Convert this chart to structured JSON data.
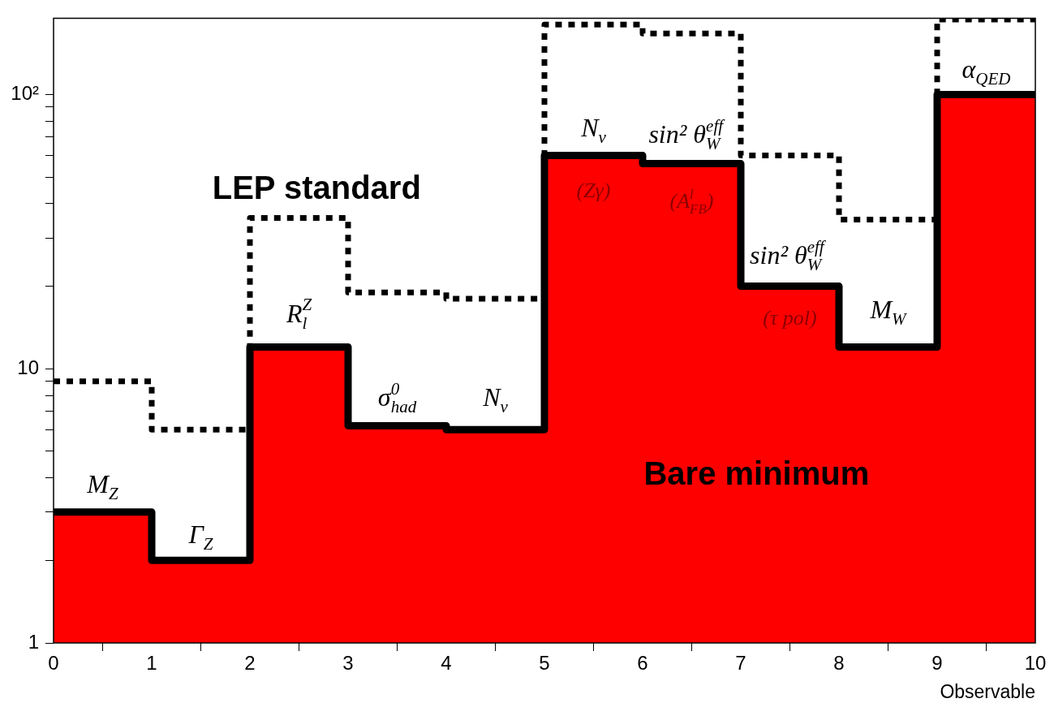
{
  "chart_data": {
    "type": "histogram",
    "xlabel": "Observable",
    "bins": [
      0,
      1,
      2,
      3,
      4,
      5,
      6,
      7,
      8,
      9,
      10
    ],
    "log": "y",
    "xlim": [
      0,
      10
    ],
    "ylim": [
      1,
      190
    ],
    "xticks": [
      0,
      1,
      2,
      3,
      4,
      5,
      6,
      7,
      8,
      9,
      10
    ],
    "yticks": [
      1,
      {
        "value": 2,
        "label": null
      },
      {
        "value": 3,
        "label": null
      },
      {
        "value": 4,
        "label": null
      },
      {
        "value": 5,
        "label": null
      },
      {
        "value": 6,
        "label": null
      },
      {
        "value": 7,
        "label": null
      },
      {
        "value": 8,
        "label": null
      },
      {
        "value": 9,
        "label": null
      },
      10,
      {
        "value": 20,
        "label": null
      },
      {
        "value": 30,
        "label": null
      },
      {
        "value": 40,
        "label": null
      },
      {
        "value": 50,
        "label": null
      },
      {
        "value": 60,
        "label": null
      },
      {
        "value": 70,
        "label": null
      },
      {
        "value": 80,
        "label": null
      },
      {
        "value": 90,
        "label": null
      },
      {
        "value": 100,
        "label": "10²"
      }
    ],
    "series": [
      {
        "name": "Bare minimum",
        "color": "#ff0000",
        "values": [
          3,
          2,
          12,
          6.2,
          6,
          60,
          56,
          20,
          12,
          100
        ]
      },
      {
        "type": "step",
        "color": "#000000",
        "line_style": "solid",
        "x": [
          0,
          1,
          2,
          3,
          4,
          5,
          6,
          7,
          8,
          9,
          10
        ],
        "values": [
          3,
          2,
          12,
          6.2,
          6,
          60,
          56,
          20,
          12,
          100,
          100
        ]
      },
      {
        "name": "LEP standard",
        "type": "step",
        "color": "#000000",
        "line_style": "dotted",
        "x": [
          0,
          1,
          2,
          3,
          4,
          5,
          6,
          7,
          8,
          9,
          10
        ],
        "values": [
          9,
          6,
          35.5,
          19,
          18,
          180,
          167,
          60,
          35,
          188,
          188
        ]
      }
    ],
    "annotations": [
      "M$_{Z}$",
      "Γ$_{Z}$",
      "R$_{l}$$^{Z}$",
      "σ$_{had}$$^{0}$",
      "N$_{ν}$",
      "N$_{ν}$",
      "(Zγ)",
      "sin² θ$_{W}$$^{eff}$",
      "(A$_{FB}$$^{l}$)",
      "sin² θ$_{W}$$^{eff}$",
      "(τ pol)",
      "M$_{W}$",
      "α$_{QED}$"
    ]
  }
}
